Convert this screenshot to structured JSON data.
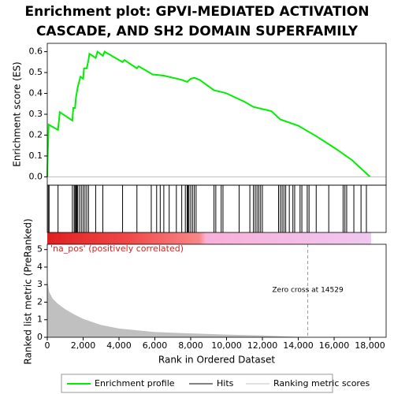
{
  "chart_data": [
    {
      "type": "line",
      "title": [
        "Enrichment plot: GPVI-MEDIATED ACTIVATION",
        "CASCADE, AND SH2 DOMAIN SUPERFAMILY"
      ],
      "ylabel": "Enrichment score (ES)",
      "x": [
        0,
        30,
        80,
        600,
        700,
        1400,
        1450,
        1550,
        1600,
        1700,
        1850,
        2000,
        2050,
        2200,
        2300,
        2350,
        2700,
        2800,
        3100,
        3200,
        4200,
        4300,
        5000,
        5100,
        5900,
        6000,
        6500,
        7500,
        7800,
        8000,
        8200,
        8500,
        9300,
        9800,
        10000,
        11000,
        11500,
        12500,
        13000,
        14000,
        15000,
        16000,
        17000,
        18000
      ],
      "series": [
        {
          "name": "Enrichment profile",
          "color": "#00ee00",
          "values": [
            0,
            0.12,
            0.25,
            0.225,
            0.31,
            0.27,
            0.33,
            0.33,
            0.38,
            0.43,
            0.48,
            0.47,
            0.52,
            0.52,
            0.56,
            0.59,
            0.57,
            0.6,
            0.58,
            0.6,
            0.55,
            0.56,
            0.52,
            0.53,
            0.49,
            0.49,
            0.485,
            0.465,
            0.455,
            0.47,
            0.475,
            0.465,
            0.415,
            0.405,
            0.4,
            0.36,
            0.335,
            0.315,
            0.275,
            0.245,
            0.195,
            0.14,
            0.08,
            0
          ]
        }
      ],
      "xlim": [
        0,
        18900
      ],
      "ylim": [
        -0.04,
        0.64
      ],
      "yticks": [
        {
          "value": 0,
          "label": "0.0"
        },
        0.1,
        0.2,
        0.3,
        0.4,
        0.5,
        0.6
      ]
    },
    {
      "type": "event",
      "xlim": [
        0,
        18900
      ],
      "series": [
        {
          "name": "Hits",
          "color": "#000000",
          "x": [
            50,
            100,
            600,
            1400,
            1500,
            1550,
            1600,
            1650,
            1700,
            1800,
            1900,
            2000,
            2100,
            2200,
            2300,
            2700,
            3100,
            4200,
            5000,
            5800,
            6100,
            6300,
            6500,
            6800,
            7200,
            7500,
            7700,
            7800,
            7850,
            7900,
            8000,
            8100,
            8200,
            8300,
            9300,
            9400,
            9700,
            9800,
            10700,
            11300,
            11500,
            11600,
            11700,
            11800,
            11900,
            12000,
            12900,
            13000,
            13100,
            13200,
            13300,
            13500,
            13700,
            13800,
            14100,
            14200,
            14500,
            14600,
            15000,
            15700,
            16500,
            16600,
            16700,
            17100,
            17500,
            17800
          ]
        }
      ]
    },
    {
      "type": "area",
      "ylabel": "Ranked list metric (PreRanked)",
      "xlabel": "Rank in Ordered Dataset",
      "band_label": "'na_pos' (positively correlated)",
      "annotation": "Zero cross at 14529",
      "zero_cross": 14529,
      "x": [
        0,
        100,
        300,
        600,
        1000,
        1500,
        2000,
        3000,
        4000,
        5000,
        6000,
        8000,
        10000,
        12000,
        14529,
        18000
      ],
      "series": [
        {
          "name": "Ranking metric scores",
          "color": "#c0c0c0",
          "values": [
            3.3,
            2.6,
            2.2,
            1.9,
            1.6,
            1.3,
            1.05,
            0.7,
            0.5,
            0.4,
            0.3,
            0.22,
            0.15,
            0.1,
            0,
            0
          ]
        }
      ],
      "xlim": [
        0,
        18900
      ],
      "ylim": [
        0,
        5.3
      ],
      "yticks": [
        0,
        1,
        2,
        3,
        4,
        5
      ],
      "xticks": [
        0,
        {
          "value": 2000,
          "label": "2,000"
        },
        {
          "value": 4000,
          "label": "4,000"
        },
        {
          "value": 6000,
          "label": "6,000"
        },
        {
          "value": 8000,
          "label": "8,000"
        },
        {
          "value": 10000,
          "label": "10,000"
        },
        {
          "value": 12000,
          "label": "12,000"
        },
        {
          "value": 14000,
          "label": "14,000"
        },
        {
          "value": 16000,
          "label": "16,000"
        },
        {
          "value": 18000,
          "label": "18,000"
        }
      ]
    }
  ]
}
